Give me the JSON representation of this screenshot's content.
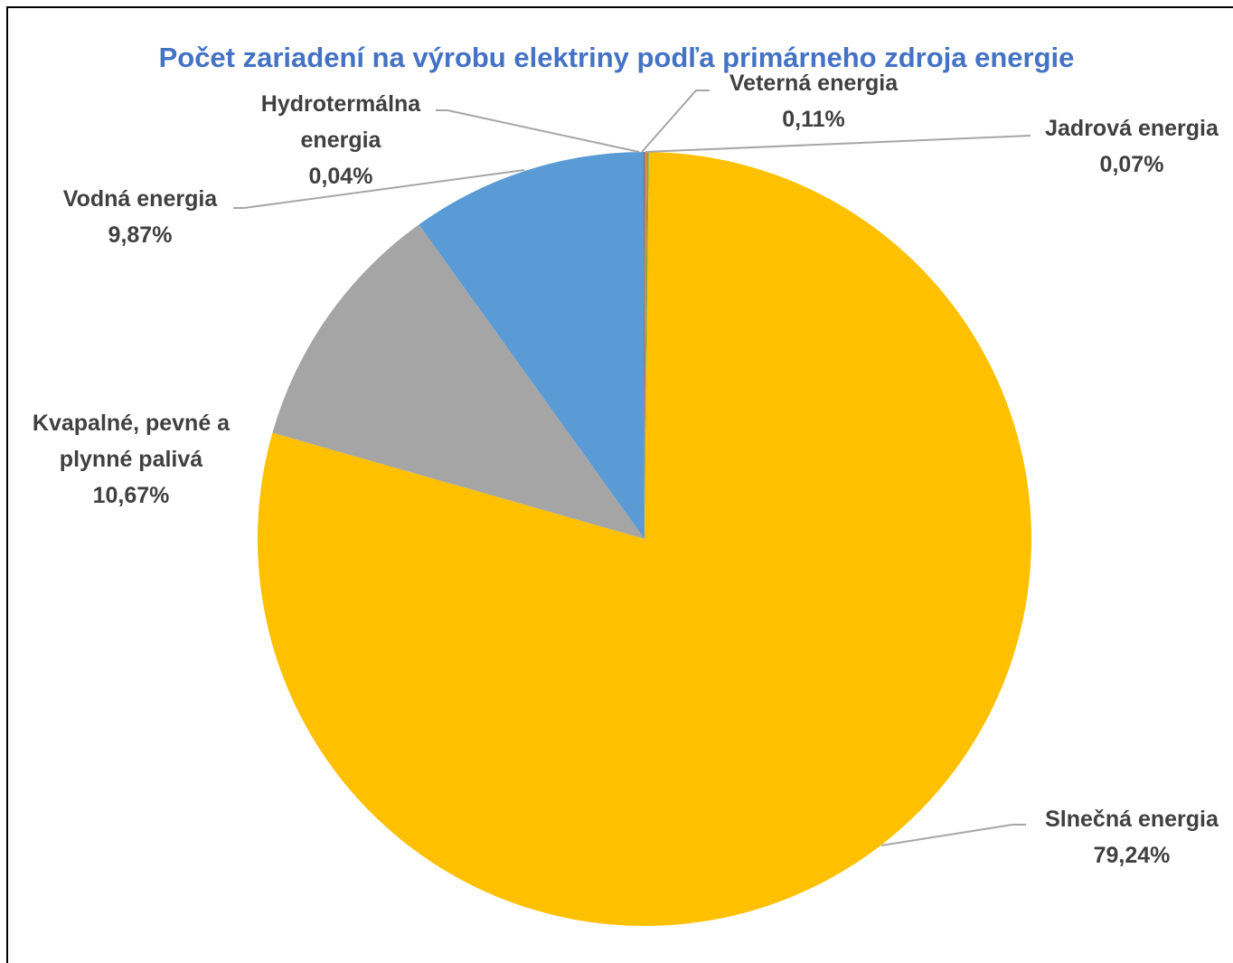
{
  "chart_data": {
    "type": "pie",
    "title": "Počet zariadení na výrobu elektriny podľa primárneho zdroja energie",
    "categories": [
      "Veterná energia",
      "Jadrová energia",
      "Slnečná energia",
      "Kvapalné, pevné a plynné palivá",
      "Vodná energia",
      "Hydrotermálna energia"
    ],
    "values": [
      0.11,
      0.07,
      79.24,
      10.67,
      9.87,
      0.04
    ],
    "value_labels": [
      "0,11%",
      "0,07%",
      "79,24%",
      "10,67%",
      "9,87%",
      "0,04%"
    ],
    "colors": [
      "#ED7D31",
      "#70AD47",
      "#FFC000",
      "#A5A5A5",
      "#5B9BD5",
      "#4472C4"
    ]
  }
}
